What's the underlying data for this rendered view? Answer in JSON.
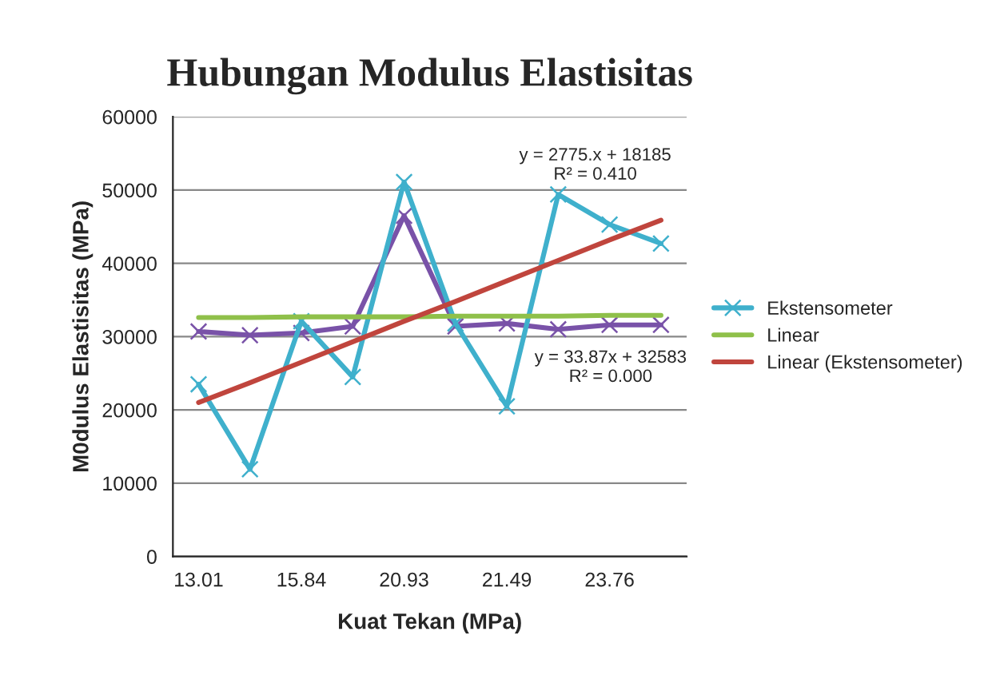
{
  "chart_data": {
    "type": "line",
    "title": "Hubungan Modulus Elastisitas",
    "xlabel": "Kuat Tekan (MPa)",
    "ylabel": "M0dulus Elastisitas (MPa)",
    "categories": [
      "13.01",
      null,
      "15.84",
      null,
      "20.93",
      null,
      "21.49",
      null,
      "23.76",
      null
    ],
    "series": [
      {
        "color": "#7952a8",
        "marker": "cross",
        "values": [
          30700,
          30200,
          30500,
          31400,
          46500,
          31400,
          31800,
          31000,
          31600,
          31600
        ]
      },
      {
        "name": "Ekstensometer",
        "color": "#3fb0cc",
        "marker": "cross",
        "values": [
          23500,
          11900,
          32100,
          24500,
          51100,
          31800,
          20500,
          49400,
          45300,
          42700
        ]
      },
      {
        "name": "Linear",
        "color": "#8fc04a",
        "marker": "none",
        "values": [
          32600,
          32600,
          32700,
          32700,
          32700,
          32800,
          32800,
          32800,
          32900,
          32900
        ]
      },
      {
        "name": "Linear (Ekstensometer)",
        "color": "#c0453d",
        "marker": "none",
        "values": [
          21000,
          23700,
          26500,
          29300,
          32100,
          34800,
          37600,
          40400,
          43200,
          45900
        ]
      }
    ],
    "ylim": [
      0,
      60000
    ],
    "yticks": [
      0,
      10000,
      20000,
      30000,
      40000,
      50000,
      60000
    ],
    "grid": "y",
    "legend": "right",
    "annotations": [
      "y = 2775.x + 18185\nR² = 0.410",
      "y = 33.87x + 32583\nR² = 0.000"
    ]
  }
}
